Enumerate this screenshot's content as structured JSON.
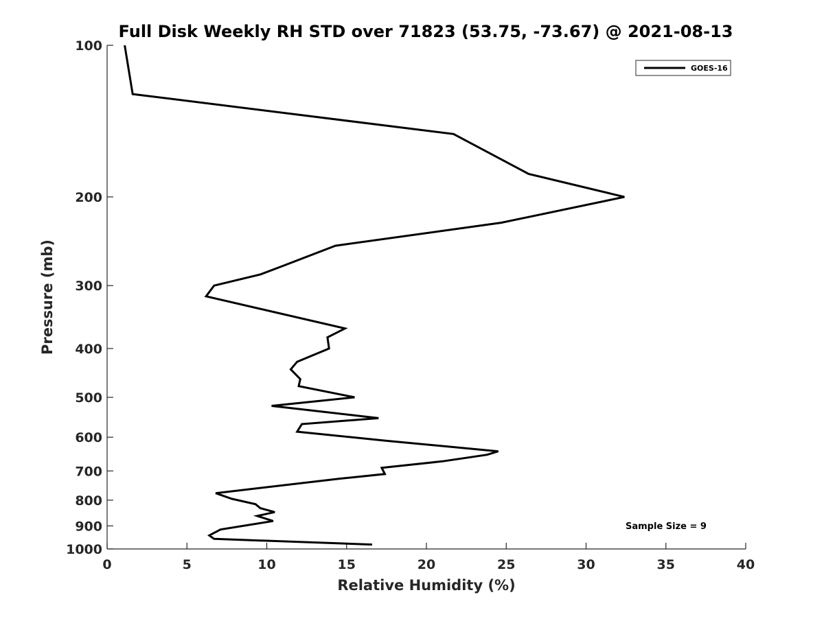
{
  "chart_data": {
    "type": "line",
    "title": "Full Disk Weekly RH STD over 71823 (53.75, -73.67) @ 2021-08-13",
    "xlabel": "Relative Humidity (%)",
    "ylabel": "Pressure (mb)",
    "xlim": [
      0,
      40
    ],
    "ylim": [
      100,
      1000
    ],
    "y_scale": "log",
    "y_reversed": true,
    "x_ticks": [
      0,
      5,
      10,
      15,
      20,
      25,
      30,
      35,
      40
    ],
    "y_ticks": [
      100,
      200,
      300,
      400,
      500,
      600,
      700,
      800,
      900,
      1000
    ],
    "grid": false,
    "legend_position": "top-right",
    "series": [
      {
        "name": "GOES-16",
        "color": "#000000",
        "points": [
          [
            1.1,
            100
          ],
          [
            1.6,
            125
          ],
          [
            21.7,
            150
          ],
          [
            26.4,
            180
          ],
          [
            32.4,
            200
          ],
          [
            24.7,
            225
          ],
          [
            14.3,
            250
          ],
          [
            10.9,
            275
          ],
          [
            9.6,
            285
          ],
          [
            6.7,
            300
          ],
          [
            6.2,
            315
          ],
          [
            14.9,
            365
          ],
          [
            13.8,
            380
          ],
          [
            13.9,
            400
          ],
          [
            11.9,
            425
          ],
          [
            11.5,
            440
          ],
          [
            12.1,
            460
          ],
          [
            12.0,
            475
          ],
          [
            15.5,
            500
          ],
          [
            10.3,
            520
          ],
          [
            17.0,
            550
          ],
          [
            12.2,
            565
          ],
          [
            11.9,
            585
          ],
          [
            17.5,
            610
          ],
          [
            24.5,
            640
          ],
          [
            23.8,
            650
          ],
          [
            21.0,
            670
          ],
          [
            17.2,
            690
          ],
          [
            17.4,
            710
          ],
          [
            14.6,
            725
          ],
          [
            6.8,
            775
          ],
          [
            7.8,
            795
          ],
          [
            9.3,
            815
          ],
          [
            9.6,
            830
          ],
          [
            10.5,
            845
          ],
          [
            9.4,
            860
          ],
          [
            10.4,
            880
          ],
          [
            7.1,
            915
          ],
          [
            6.4,
            940
          ],
          [
            6.7,
            955
          ],
          [
            16.6,
            980
          ]
        ]
      }
    ],
    "annotations": [
      {
        "text": "Sample Size = 9"
      }
    ]
  }
}
